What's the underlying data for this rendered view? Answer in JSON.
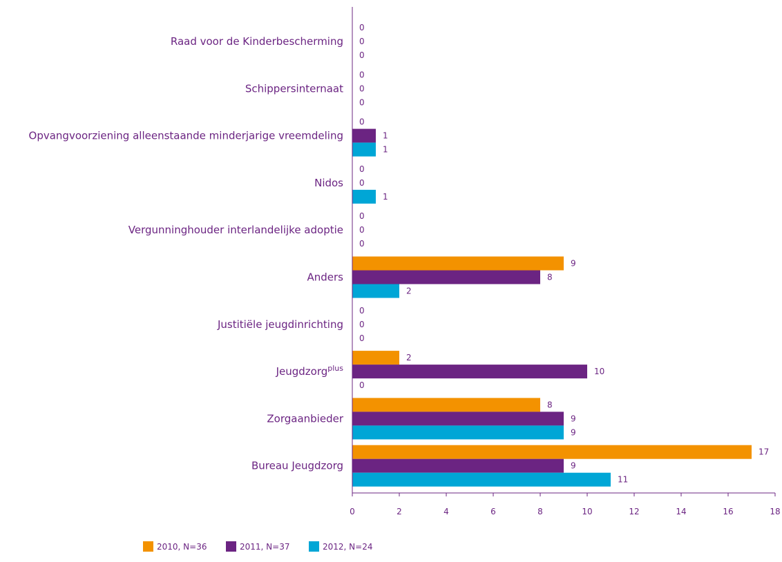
{
  "chart_data": {
    "type": "bar",
    "orientation": "horizontal",
    "categories": [
      "Raad voor de Kinderbescherming",
      "Schippersinternaat",
      "Opvangvoorziening alleenstaande minderjarige vreemdeling",
      "Nidos",
      "Vergunninghouder interlandelijke adoptie",
      "Anders",
      "Justitiële jeugdinrichting",
      "Jeugdzorg",
      "Zorgaanbieder",
      "Bureau Jeugdzorg"
    ],
    "category_superscripts": [
      "",
      "",
      "",
      "",
      "",
      "",
      "",
      "plus",
      "",
      ""
    ],
    "series": [
      {
        "name": "2010, N=36",
        "color": "#f39200",
        "values": [
          0,
          0,
          0,
          0,
          0,
          9,
          0,
          2,
          8,
          17
        ]
      },
      {
        "name": "2011, N=37",
        "color": "#6b2482",
        "values": [
          0,
          0,
          1,
          0,
          0,
          8,
          0,
          10,
          9,
          9
        ]
      },
      {
        "name": "2012, N=24",
        "color": "#00a6d6",
        "values": [
          0,
          0,
          1,
          1,
          0,
          2,
          0,
          0,
          9,
          11
        ]
      }
    ],
    "xlim": [
      0,
      18
    ],
    "xticks": [
      0,
      2,
      4,
      6,
      8,
      10,
      12,
      14,
      16,
      18
    ],
    "grid": false,
    "legend_position": "bottom-left",
    "axis_color": "#6b2482",
    "text_color": "#6b2482"
  }
}
